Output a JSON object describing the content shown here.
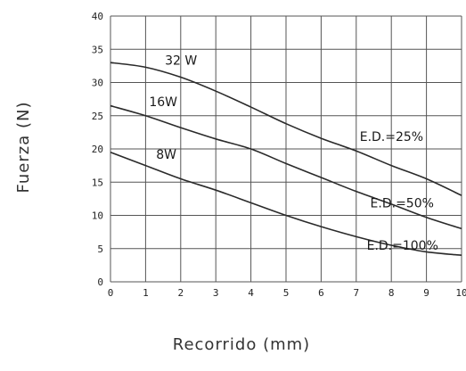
{
  "chart_data": {
    "type": "line",
    "xlabel": "Recorrido (mm)",
    "ylabel": "Fuerza (N)",
    "xlim": [
      0,
      10
    ],
    "ylim": [
      0,
      40
    ],
    "x_ticks": [
      "0",
      "1",
      "2",
      "3",
      "4",
      "5",
      "6",
      "7",
      "8",
      "9",
      "10"
    ],
    "y_ticks": [
      "0",
      "5",
      "10",
      "15",
      "20",
      "25",
      "30",
      "35",
      "40"
    ],
    "grid": true,
    "series": [
      {
        "name": "E.D.=25%",
        "power_label": "32 W",
        "points": [
          [
            0,
            33
          ],
          [
            1,
            32.3
          ],
          [
            2,
            30.8
          ],
          [
            3,
            28.7
          ],
          [
            4,
            26.3
          ],
          [
            5,
            23.8
          ],
          [
            6,
            21.6
          ],
          [
            7,
            19.7
          ],
          [
            8,
            17.5
          ],
          [
            9,
            15.5
          ],
          [
            10,
            13
          ]
        ]
      },
      {
        "name": "E.D.=50%",
        "power_label": "16W",
        "points": [
          [
            0,
            26.5
          ],
          [
            1,
            25
          ],
          [
            2,
            23.2
          ],
          [
            3,
            21.5
          ],
          [
            4,
            20
          ],
          [
            5,
            17.8
          ],
          [
            6,
            15.7
          ],
          [
            7,
            13.6
          ],
          [
            8,
            11.7
          ],
          [
            9,
            9.7
          ],
          [
            10,
            8
          ]
        ]
      },
      {
        "name": "E.D.=100%",
        "power_label": "8W",
        "points": [
          [
            0,
            19.5
          ],
          [
            1,
            17.5
          ],
          [
            2,
            15.5
          ],
          [
            3,
            13.8
          ],
          [
            4,
            11.9
          ],
          [
            5,
            10
          ],
          [
            6,
            8.3
          ],
          [
            7,
            6.8
          ],
          [
            8,
            5.5
          ],
          [
            9,
            4.5
          ],
          [
            10,
            4
          ]
        ]
      }
    ]
  }
}
